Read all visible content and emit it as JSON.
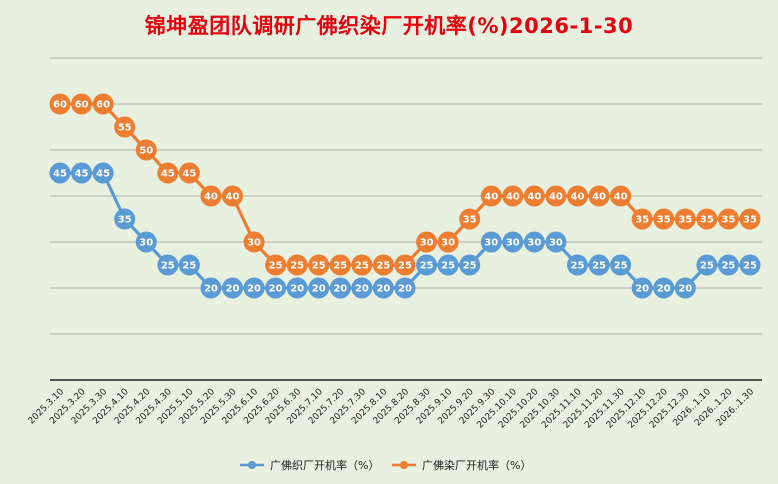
{
  "chart_data": {
    "type": "line",
    "title": "锦坤盈团队调研广佛织染厂开机率(%)2026-1-30",
    "xlabel": "",
    "ylabel": "",
    "ylim": [
      0,
      70
    ],
    "grid": true,
    "legend_position": "bottom",
    "categories": [
      "2025.3.10",
      "2025.3.20",
      "2025.3.30",
      "2025.4.10",
      "2025.4.20",
      "2025.4.30",
      "2025.5.10",
      "2025.5.20",
      "2025.5.30",
      "2025.6.10",
      "2025.6.20",
      "2025.6.30",
      "2025.7.10",
      "2025.7.20",
      "2025.7.30",
      "2025.8.10",
      "2025.8.20",
      "2025.8.30",
      "2025.9.10",
      "2025.9.20",
      "2025.9.30",
      "2025.10.10",
      "2025.10.20",
      "2025.10.30",
      "2025.11.10",
      "2025.11.20",
      "2025.11.30",
      "2025.12.10",
      "2025.12.20",
      "2025.12.30",
      "2026..1.10",
      "2026..1.20",
      "2026..1.30"
    ],
    "series": [
      {
        "name": "广佛织厂开机率（%）",
        "color": "#5b9bd5",
        "values": [
          45,
          45,
          45,
          35,
          30,
          25,
          25,
          20,
          20,
          20,
          20,
          20,
          20,
          20,
          20,
          20,
          20,
          25,
          25,
          25,
          30,
          30,
          30,
          30,
          25,
          25,
          25,
          20,
          20,
          20,
          25,
          25,
          25
        ]
      },
      {
        "name": "广佛染厂开机率（%）",
        "color": "#ed7d31",
        "values": [
          60,
          60,
          60,
          55,
          50,
          45,
          45,
          40,
          40,
          30,
          25,
          25,
          25,
          25,
          25,
          25,
          25,
          30,
          30,
          35,
          40,
          40,
          40,
          40,
          40,
          40,
          40,
          35,
          35,
          35,
          35,
          35,
          35
        ]
      }
    ]
  }
}
